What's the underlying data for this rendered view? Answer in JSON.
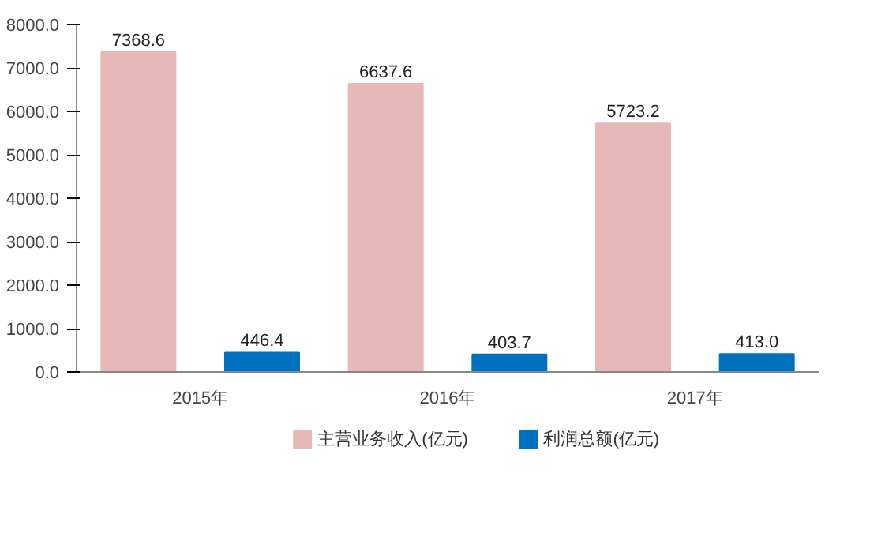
{
  "chart_data": {
    "type": "bar",
    "categories": [
      "2015年",
      "2016年",
      "2017年"
    ],
    "series": [
      {
        "name": "主营业务收入(亿元)",
        "color": "#e6b9b8",
        "values": [
          7368.6,
          6637.6,
          5723.2
        ],
        "value_labels": [
          "7368.6",
          "6637.6",
          "5723.2"
        ]
      },
      {
        "name": "利润总额(亿元)",
        "color": "#0070c0",
        "values": [
          446.4,
          403.7,
          413
        ],
        "value_labels": [
          "446.4",
          "403.7",
          "413.0"
        ]
      }
    ],
    "ylim": [
      0,
      8000
    ],
    "yticks": [
      {
        "value": 0,
        "label": "0.0"
      },
      {
        "value": 1000,
        "label": "1000.0"
      },
      {
        "value": 2000,
        "label": "2000.0"
      },
      {
        "value": 3000,
        "label": "3000.0"
      },
      {
        "value": 4000,
        "label": "4000.0"
      },
      {
        "value": 5000,
        "label": "5000.0"
      },
      {
        "value": 6000,
        "label": "6000.0"
      },
      {
        "value": 7000,
        "label": "7000.0"
      },
      {
        "value": 8000,
        "label": "8000.0"
      }
    ],
    "grid": false,
    "legend": "bottom",
    "data_labels": true
  }
}
